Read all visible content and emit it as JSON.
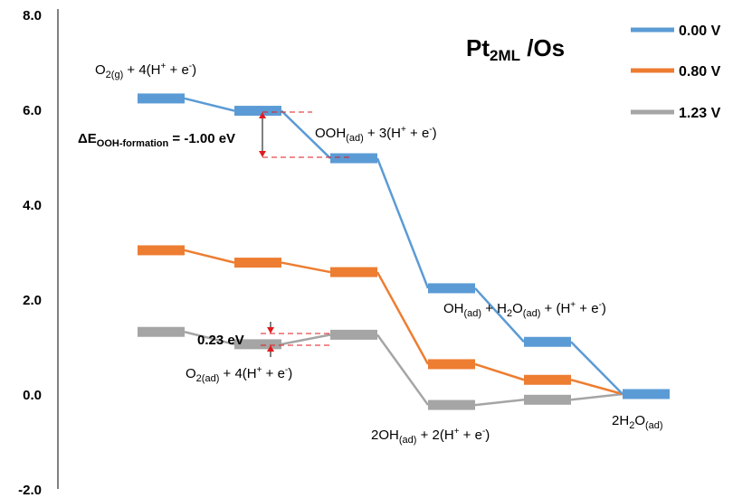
{
  "chart_data": {
    "type": "line",
    "title": "Pt2ML /Os",
    "title_parts": {
      "main": "Pt",
      "sub": "2ML",
      "tail": " /Os"
    },
    "ylim": [
      -2.0,
      8.0
    ],
    "yticks": [
      "8.0",
      "6.0",
      "4.0",
      "2.0",
      "0.0",
      "-2.0"
    ],
    "ytick_values": [
      8,
      6,
      4,
      2,
      0,
      -2
    ],
    "grid": false,
    "legend_position": "top-right",
    "steps": [
      1,
      2,
      3,
      4,
      5,
      6
    ],
    "series": [
      {
        "name": "0.00 V",
        "color": "#5b9bd5",
        "values": [
          6.23,
          5.97,
          4.97,
          2.23,
          1.1,
          0.0
        ]
      },
      {
        "name": "0.80 V",
        "color": "#ed7d31",
        "values": [
          3.03,
          2.77,
          2.57,
          0.63,
          0.3,
          0.0
        ]
      },
      {
        "name": "1.23 V",
        "color": "#a5a5a5",
        "values": [
          1.31,
          1.05,
          1.25,
          -0.23,
          -0.12,
          0.0
        ]
      }
    ],
    "annotations": {
      "o2g_main": "O",
      "o2g_sub": "2(g)",
      "o2g_tail": " + 4(H",
      "o2g_sup": "+",
      "o2g_end": " + e",
      "o2g_sup2": "-",
      "o2g_close": ")",
      "ooh_main": "OOH",
      "ooh_sub": "(ad)",
      "ooh_tail": " + 3(H",
      "ooh_sup": "+",
      "ooh_end": " + e",
      "ooh_sup2": "-",
      "ooh_close": ")",
      "delta_main": "ΔE",
      "delta_sub": "OOH-formation",
      "delta_tail": " = -1.00 eV",
      "oh_main": "OH",
      "oh_sub": "(ad)",
      "oh_mid": " + H",
      "oh_sub2": "2",
      "oh_mid2": "O",
      "oh_sub3": "(ad)",
      "oh_tail": " + (H",
      "oh_sup": "+",
      "oh_end": " + e",
      "oh_sup2": "-",
      "oh_close": ")",
      "ev023": "0.23 eV",
      "o2ad_main": "O",
      "o2ad_sub": "2(ad)",
      "o2ad_tail": " + 4(H",
      "o2ad_sup": "+",
      "o2ad_end": " + e",
      "o2ad_sup2": "-",
      "o2ad_close": ")",
      "twooh_main": "2OH",
      "twooh_sub": "(ad)",
      "twooh_tail": " + 2(H",
      "twooh_sup": "+",
      "twooh_end": " + e",
      "twooh_sup2": "-",
      "twooh_close": ")",
      "h2o_main": "2H",
      "h2o_sub": "2",
      "h2o_mid": "O",
      "h2o_sub2": "(ad)"
    },
    "annotation_color": "#e31a1c"
  }
}
